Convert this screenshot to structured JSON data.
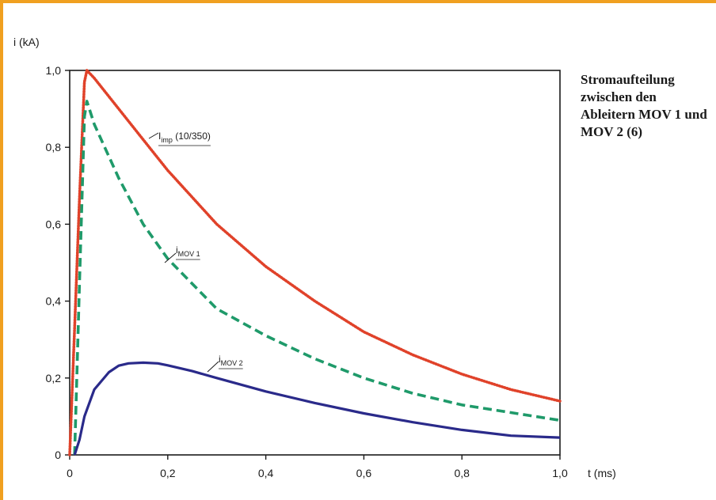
{
  "caption": "Stromaufteilung zwischen den Ableitern MOV 1 und MOV 2 (6)",
  "chart_data": {
    "type": "line",
    "ylabel": "i (kA)",
    "xlabel": "t (ms)",
    "xlim": [
      0,
      1.0
    ],
    "ylim": [
      0,
      1.0
    ],
    "x_ticks": [
      0,
      0.2,
      0.4,
      0.6,
      0.8,
      1.0
    ],
    "x_tick_labels": [
      "0",
      "0,2",
      "0,4",
      "0,6",
      "0,8",
      "1,0"
    ],
    "y_ticks": [
      0,
      0.2,
      0.4,
      0.6,
      0.8,
      1.0
    ],
    "y_tick_labels": [
      "0",
      "0,2",
      "0,4",
      "0,6",
      "0,8",
      "1,0"
    ],
    "grid": false,
    "series": [
      {
        "name_main": "I",
        "name_sub": "imp",
        "name_suffix": " (10/350)",
        "color": "#e0422a",
        "style": "dotted",
        "x": [
          0.0,
          0.01,
          0.02,
          0.03,
          0.035,
          0.05,
          0.1,
          0.15,
          0.2,
          0.3,
          0.4,
          0.5,
          0.6,
          0.7,
          0.8,
          0.9,
          1.0
        ],
        "y": [
          0.0,
          0.33,
          0.67,
          0.97,
          1.0,
          0.98,
          0.9,
          0.82,
          0.74,
          0.6,
          0.49,
          0.4,
          0.32,
          0.26,
          0.21,
          0.17,
          0.14
        ]
      },
      {
        "name_main": "i",
        "name_sub": "MOV 1",
        "name_suffix": "",
        "color": "#1f9a6a",
        "style": "dashed",
        "x": [
          0.01,
          0.02,
          0.03,
          0.035,
          0.05,
          0.1,
          0.15,
          0.2,
          0.3,
          0.4,
          0.5,
          0.6,
          0.7,
          0.8,
          0.9,
          1.0
        ],
        "y": [
          0.0,
          0.45,
          0.88,
          0.92,
          0.86,
          0.72,
          0.6,
          0.51,
          0.38,
          0.31,
          0.25,
          0.2,
          0.16,
          0.13,
          0.11,
          0.09
        ]
      },
      {
        "name_main": "i",
        "name_sub": "MOV 2",
        "name_suffix": "",
        "color": "#2a2a8a",
        "style": "solid",
        "x": [
          0.01,
          0.02,
          0.03,
          0.05,
          0.08,
          0.1,
          0.12,
          0.15,
          0.18,
          0.2,
          0.25,
          0.3,
          0.4,
          0.5,
          0.6,
          0.7,
          0.8,
          0.9,
          1.0
        ],
        "y": [
          0.0,
          0.04,
          0.1,
          0.17,
          0.215,
          0.232,
          0.238,
          0.24,
          0.238,
          0.233,
          0.218,
          0.2,
          0.165,
          0.135,
          0.108,
          0.085,
          0.065,
          0.05,
          0.045
        ]
      }
    ]
  }
}
